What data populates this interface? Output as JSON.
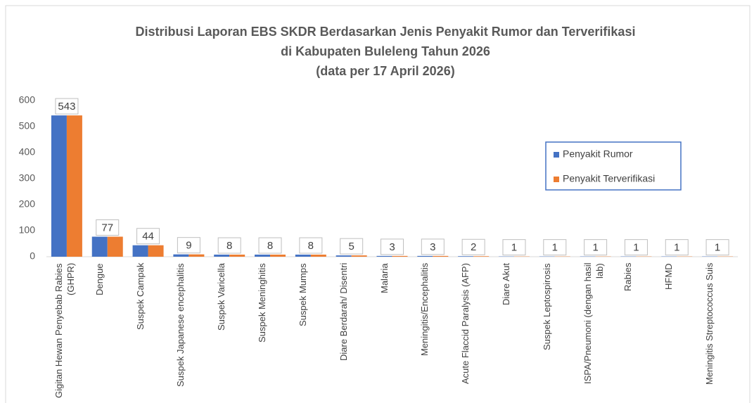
{
  "chart_data": {
    "type": "bar",
    "title": [
      "Distribusi Laporan EBS SKDR Berdasarkan Jenis Penyakit Rumor dan Terverifikasi",
      "di Kabupaten Buleleng Tahun 2026",
      "(data per 17 April 2026)"
    ],
    "categories": [
      "Gigitan Hewan Penyebab Rabies (GHPR)",
      "Dengue",
      "Suspek Campak",
      "Suspek Japanese encephalitis",
      "Suspek Varicella",
      "Suspek Meninghitis",
      "Suspek Mumps",
      "Diare Berdarah/ Disentri",
      "Malaria",
      "Meningitis/Encephalitis",
      "Acute Flaccid Paralysis (AFP)",
      "Diare Akut",
      "Suspek Leptospirosis",
      "ISPA/Pneumoni (dengan hasil lab)",
      "Rabies",
      "HFMD",
      "Meningitis Streptococcus Suis"
    ],
    "series": [
      {
        "name": "Penyakit Rumor",
        "color": "#4472c4",
        "values": [
          543,
          77,
          44,
          9,
          8,
          8,
          8,
          5,
          3,
          3,
          2,
          1,
          1,
          1,
          1,
          1,
          1
        ]
      },
      {
        "name": "Penyakit Terverifikasi",
        "color": "#ed7d31",
        "values": [
          543,
          77,
          44,
          9,
          8,
          8,
          8,
          5,
          3,
          3,
          2,
          1,
          1,
          1,
          1,
          1,
          1
        ]
      }
    ],
    "ylim": [
      0,
      600
    ],
    "yticks": [
      0,
      100,
      200,
      300,
      400,
      500,
      600
    ],
    "grid": false,
    "legend": "right"
  }
}
